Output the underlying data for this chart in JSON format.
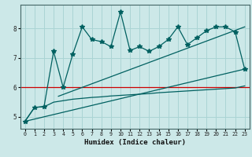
{
  "xlabel": "Humidex (Indice chaleur)",
  "background_color": "#cce8e8",
  "grid_color": "#aad4d4",
  "line_color": "#006060",
  "red_line_color": "#cc0000",
  "xlim": [
    -0.5,
    23.5
  ],
  "ylim": [
    4.6,
    8.8
  ],
  "xticks": [
    0,
    1,
    2,
    3,
    4,
    5,
    6,
    7,
    8,
    9,
    10,
    11,
    12,
    13,
    14,
    15,
    16,
    17,
    18,
    19,
    20,
    21,
    22,
    23
  ],
  "yticks": [
    5,
    6,
    7,
    8
  ],
  "red_hline_y": 6.0,
  "zigzag_series": [
    [
      0,
      4.85
    ],
    [
      1,
      5.32
    ],
    [
      2,
      5.35
    ],
    [
      3,
      7.22
    ],
    [
      4,
      6.0
    ],
    [
      5,
      7.12
    ],
    [
      6,
      8.05
    ],
    [
      7,
      7.62
    ],
    [
      8,
      7.55
    ],
    [
      9,
      7.38
    ],
    [
      10,
      8.55
    ],
    [
      11,
      7.25
    ],
    [
      12,
      7.38
    ],
    [
      13,
      7.22
    ],
    [
      14,
      7.38
    ],
    [
      15,
      7.62
    ],
    [
      16,
      8.05
    ],
    [
      17,
      7.45
    ],
    [
      18,
      7.68
    ],
    [
      19,
      7.92
    ],
    [
      20,
      8.05
    ],
    [
      21,
      8.05
    ],
    [
      22,
      7.88
    ],
    [
      23,
      6.62
    ]
  ],
  "lower_step": [
    [
      0,
      4.85
    ],
    [
      1,
      5.32
    ],
    [
      2,
      5.35
    ],
    [
      2.5,
      5.42
    ],
    [
      3,
      5.5
    ],
    [
      4,
      5.55
    ],
    [
      5,
      5.6
    ],
    [
      6,
      5.63
    ],
    [
      7,
      5.66
    ],
    [
      8,
      5.68
    ],
    [
      9,
      5.71
    ],
    [
      10,
      5.73
    ],
    [
      11,
      5.75
    ],
    [
      12,
      5.77
    ],
    [
      13,
      5.79
    ],
    [
      14,
      5.82
    ],
    [
      15,
      5.84
    ],
    [
      16,
      5.86
    ],
    [
      17,
      5.88
    ],
    [
      18,
      5.9
    ],
    [
      19,
      5.92
    ],
    [
      20,
      5.94
    ],
    [
      21,
      5.96
    ],
    [
      22,
      5.98
    ],
    [
      23,
      6.05
    ]
  ],
  "diag_line1": [
    [
      0,
      4.85
    ],
    [
      23,
      6.62
    ]
  ],
  "diag_line2": [
    [
      3.5,
      5.7
    ],
    [
      23,
      8.05
    ]
  ]
}
